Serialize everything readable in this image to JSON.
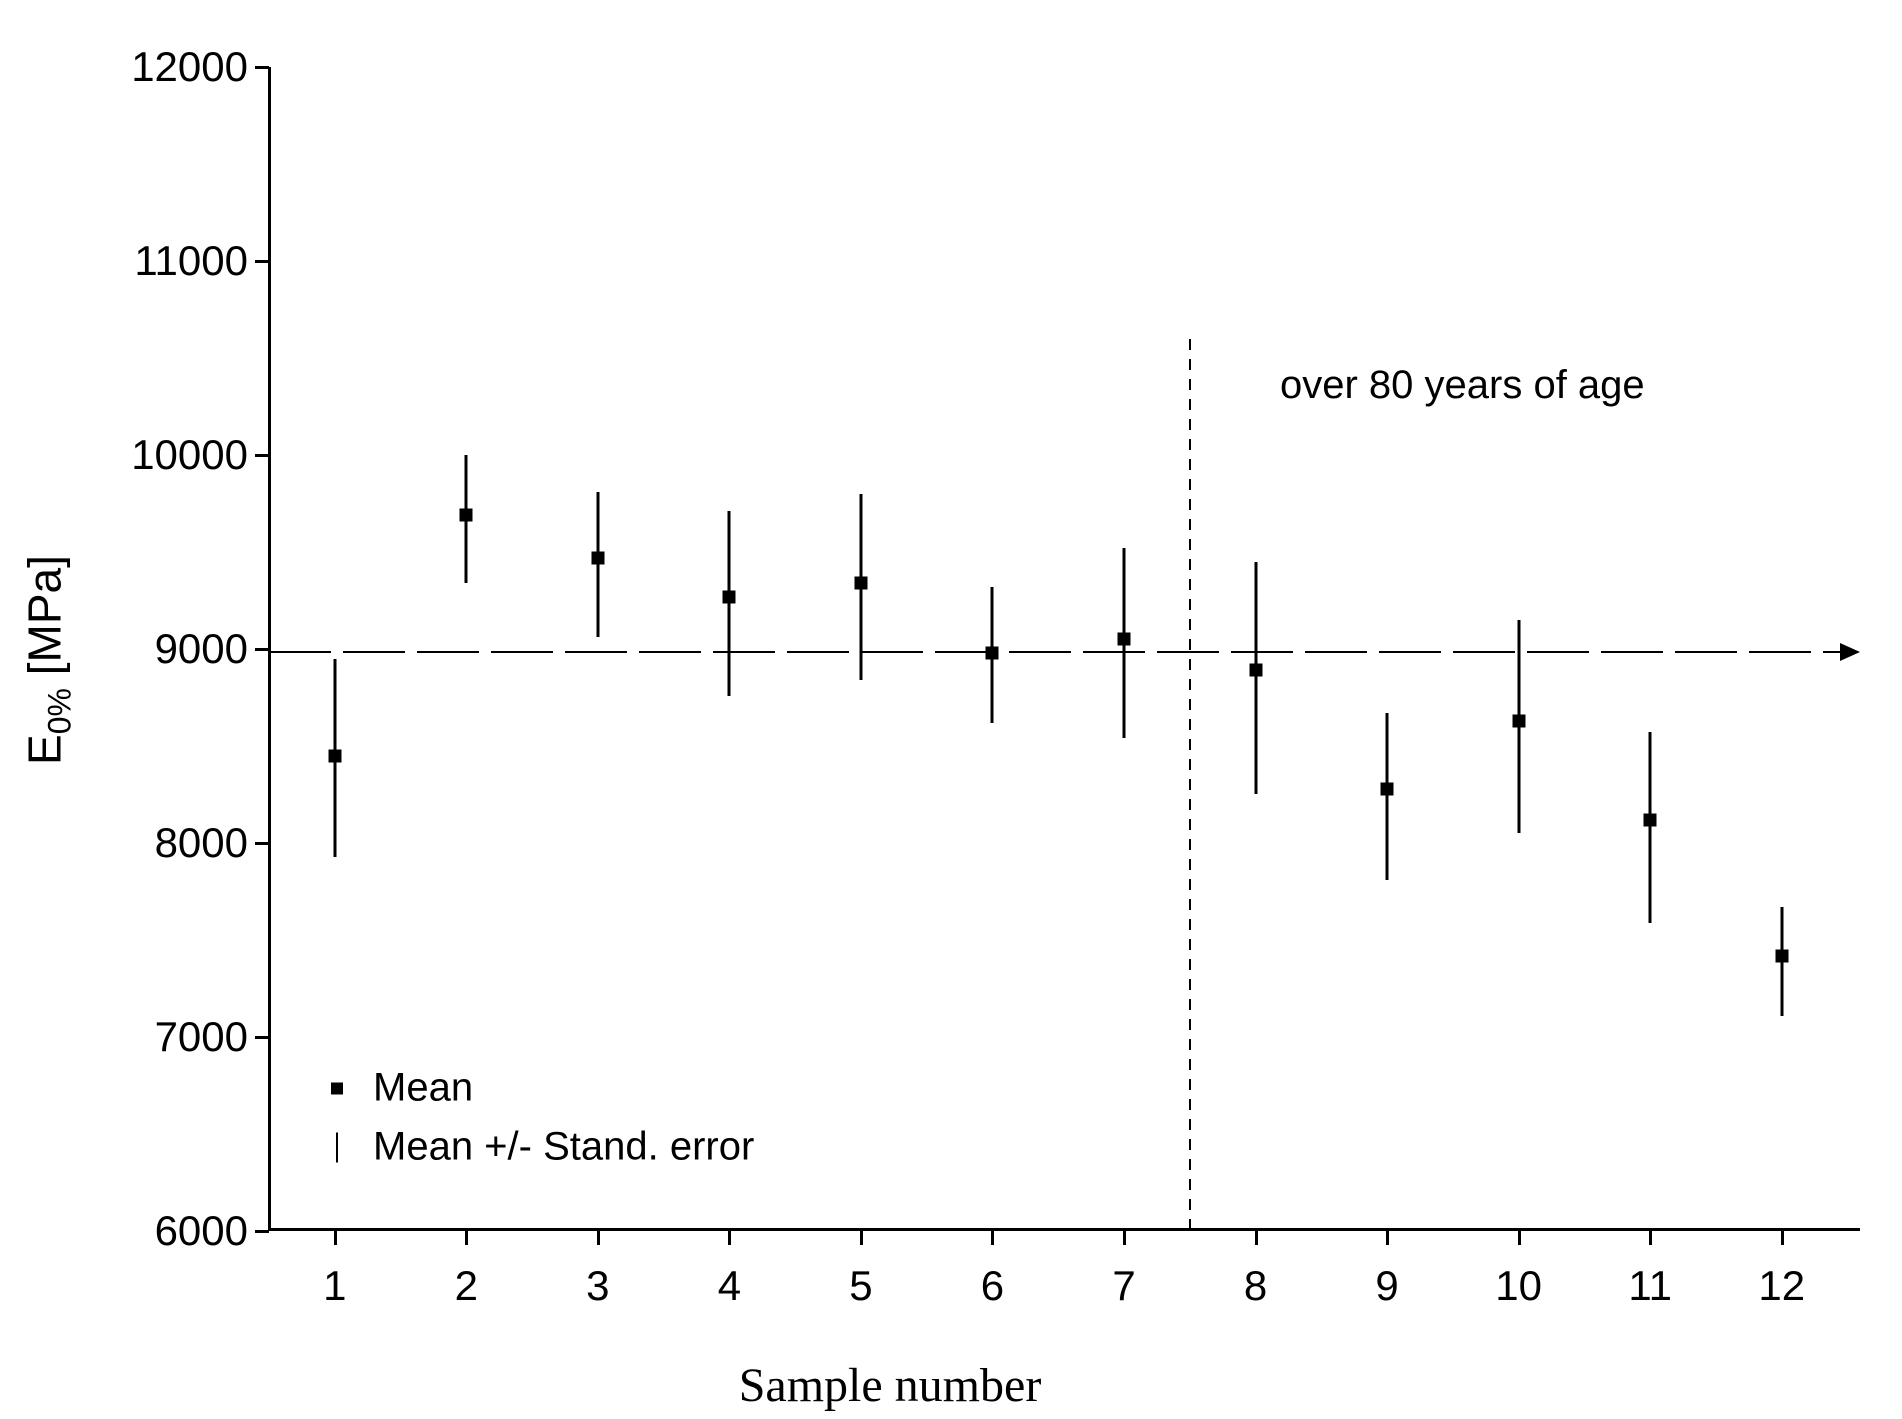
{
  "chart_data": {
    "type": "scatter",
    "title": "",
    "xlabel": "Sample number",
    "ylabel": "E0% [MPa]",
    "ylabel_parts": {
      "base": "E",
      "subscript": "0%",
      "unit": " [MPa]"
    },
    "xlim": [
      0.5,
      12.58
    ],
    "ylim": [
      6000,
      12000
    ],
    "grid": false,
    "yticks": [
      6000,
      7000,
      8000,
      9000,
      10000,
      11000,
      12000
    ],
    "xticks": [
      1,
      2,
      3,
      4,
      5,
      6,
      7,
      8,
      9,
      10,
      11,
      12
    ],
    "points": [
      {
        "sample": 1,
        "mean": 8450,
        "upper": 8950,
        "lower": 7930
      },
      {
        "sample": 2,
        "mean": 9690,
        "upper": 10000,
        "lower": 9340
      },
      {
        "sample": 3,
        "mean": 9470,
        "upper": 9810,
        "lower": 9060
      },
      {
        "sample": 4,
        "mean": 9270,
        "upper": 9710,
        "lower": 8760
      },
      {
        "sample": 5,
        "mean": 9340,
        "upper": 9800,
        "lower": 8840
      },
      {
        "sample": 6,
        "mean": 8980,
        "upper": 9320,
        "lower": 8620
      },
      {
        "sample": 7,
        "mean": 9050,
        "upper": 9520,
        "lower": 8540
      },
      {
        "sample": 8,
        "mean": 8890,
        "upper": 9450,
        "lower": 8250
      },
      {
        "sample": 9,
        "mean": 8280,
        "upper": 8670,
        "lower": 7810
      },
      {
        "sample": 10,
        "mean": 8630,
        "upper": 9150,
        "lower": 8050
      },
      {
        "sample": 11,
        "mean": 8120,
        "upper": 8570,
        "lower": 7590
      },
      {
        "sample": 12,
        "mean": 7420,
        "upper": 7670,
        "lower": 7110
      }
    ],
    "reference_lines": {
      "horizontal": {
        "y": 8985,
        "style": "dashed",
        "arrow": "right"
      },
      "vertical": {
        "x": 7.5,
        "y_top": 10600,
        "y_bottom": 6000,
        "style": "dashed"
      }
    },
    "annotation": {
      "text": "over 80 years of age"
    },
    "legend": {
      "position": "bottom-left-inside",
      "items": [
        {
          "marker": "square",
          "label": "Mean"
        },
        {
          "marker": "vline",
          "label": "Mean +/- Stand. error"
        }
      ]
    }
  }
}
